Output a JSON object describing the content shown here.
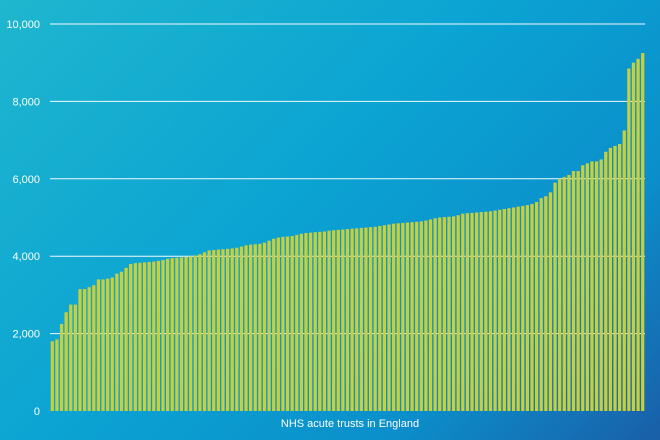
{
  "chart_data": {
    "type": "bar",
    "title": "",
    "xlabel": "NHS acute trusts in England",
    "ylabel": "",
    "ylim": [
      0,
      10000
    ],
    "y_ticks": [
      0,
      2000,
      4000,
      6000,
      8000,
      10000
    ],
    "y_tick_labels": [
      "0",
      "2,000",
      "4,000",
      "6,000",
      "8,000",
      "10,000"
    ],
    "grid": true,
    "bar_color": "#c9cf3a",
    "values": [
      1800,
      1850,
      2250,
      2550,
      2750,
      2750,
      3150,
      3150,
      3200,
      3250,
      3400,
      3400,
      3420,
      3450,
      3550,
      3600,
      3700,
      3800,
      3820,
      3830,
      3840,
      3850,
      3860,
      3880,
      3900,
      3930,
      3950,
      3960,
      3970,
      3980,
      4000,
      4020,
      4050,
      4100,
      4150,
      4160,
      4170,
      4180,
      4190,
      4200,
      4220,
      4250,
      4280,
      4300,
      4310,
      4320,
      4350,
      4400,
      4450,
      4480,
      4500,
      4510,
      4520,
      4550,
      4580,
      4600,
      4610,
      4620,
      4630,
      4640,
      4660,
      4670,
      4680,
      4690,
      4700,
      4710,
      4720,
      4730,
      4740,
      4750,
      4760,
      4780,
      4800,
      4820,
      4840,
      4850,
      4860,
      4870,
      4880,
      4890,
      4900,
      4920,
      4950,
      4980,
      5000,
      5010,
      5020,
      5030,
      5060,
      5100,
      5110,
      5120,
      5130,
      5140,
      5150,
      5160,
      5180,
      5200,
      5220,
      5240,
      5260,
      5280,
      5300,
      5320,
      5350,
      5400,
      5500,
      5550,
      5650,
      5900,
      6000,
      6050,
      6100,
      6200,
      6200,
      6350,
      6400,
      6450,
      6450,
      6500,
      6700,
      6800,
      6850,
      6900,
      7250,
      8850,
      9000,
      9100,
      9250
    ]
  }
}
